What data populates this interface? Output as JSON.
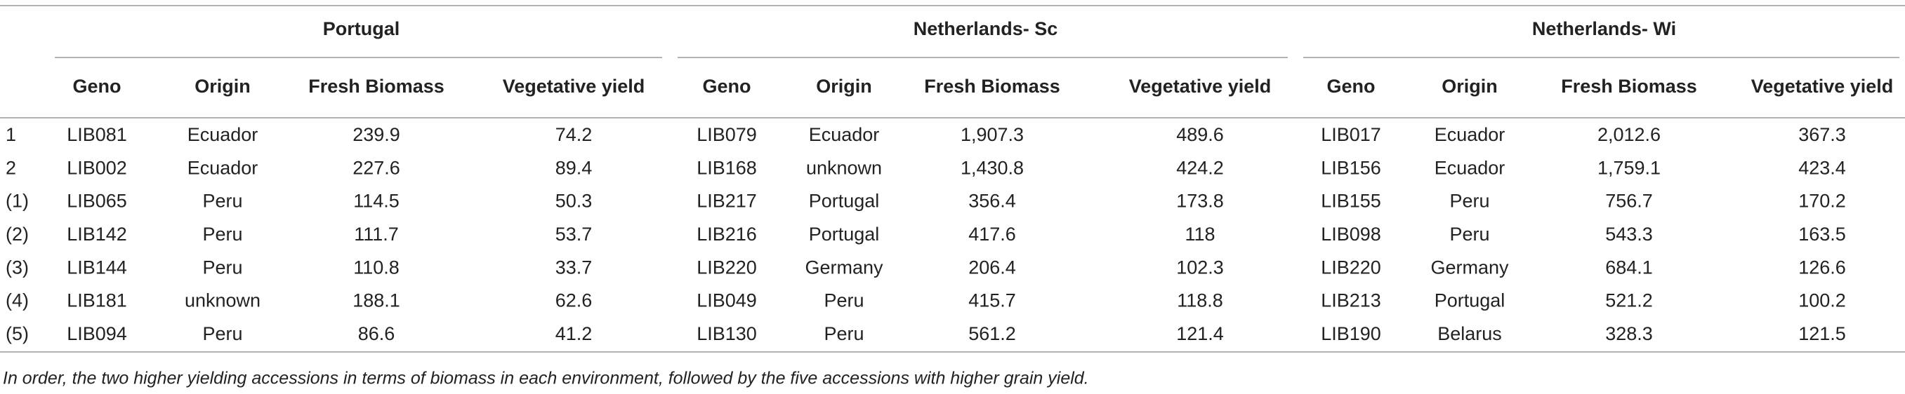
{
  "table": {
    "groups": [
      {
        "name": "Portugal",
        "columns": [
          "Geno",
          "Origin",
          "Fresh Biomass",
          "Vegetative yield"
        ]
      },
      {
        "name": "Netherlands- Sc",
        "columns": [
          "Geno",
          "Origin",
          "Fresh Biomass",
          "Vegetative yield"
        ]
      },
      {
        "name": "Netherlands- Wi",
        "columns": [
          "Geno",
          "Origin",
          "Fresh Biomass",
          "Vegetative yield"
        ]
      }
    ],
    "rows": [
      {
        "label": "1",
        "cells": [
          "LIB081",
          "Ecuador",
          "239.9",
          "74.2",
          "LIB079",
          "Ecuador",
          "1,907.3",
          "489.6",
          "LIB017",
          "Ecuador",
          "2,012.6",
          "367.3"
        ]
      },
      {
        "label": "2",
        "cells": [
          "LIB002",
          "Ecuador",
          "227.6",
          "89.4",
          "LIB168",
          "unknown",
          "1,430.8",
          "424.2",
          "LIB156",
          "Ecuador",
          "1,759.1",
          "423.4"
        ]
      },
      {
        "label": "(1)",
        "cells": [
          "LIB065",
          "Peru",
          "114.5",
          "50.3",
          "LIB217",
          "Portugal",
          "356.4",
          "173.8",
          "LIB155",
          "Peru",
          "756.7",
          "170.2"
        ]
      },
      {
        "label": "(2)",
        "cells": [
          "LIB142",
          "Peru",
          "111.7",
          "53.7",
          "LIB216",
          "Portugal",
          "417.6",
          "118",
          "LIB098",
          "Peru",
          "543.3",
          "163.5"
        ]
      },
      {
        "label": "(3)",
        "cells": [
          "LIB144",
          "Peru",
          "110.8",
          "33.7",
          "LIB220",
          "Germany",
          "206.4",
          "102.3",
          "LIB220",
          "Germany",
          "684.1",
          "126.6"
        ]
      },
      {
        "label": "(4)",
        "cells": [
          "LIB181",
          "unknown",
          "188.1",
          "62.6",
          "LIB049",
          "Peru",
          "415.7",
          "118.8",
          "LIB213",
          "Portugal",
          "521.2",
          "100.2"
        ]
      },
      {
        "label": "(5)",
        "cells": [
          "LIB094",
          "Peru",
          "86.6",
          "41.2",
          "LIB130",
          "Peru",
          "561.2",
          "121.4",
          "LIB190",
          "Belarus",
          "328.3",
          "121.5"
        ]
      }
    ],
    "footnote": "In order, the two higher yielding accessions in terms of biomass in each environment, followed by the five accessions with higher grain yield."
  }
}
